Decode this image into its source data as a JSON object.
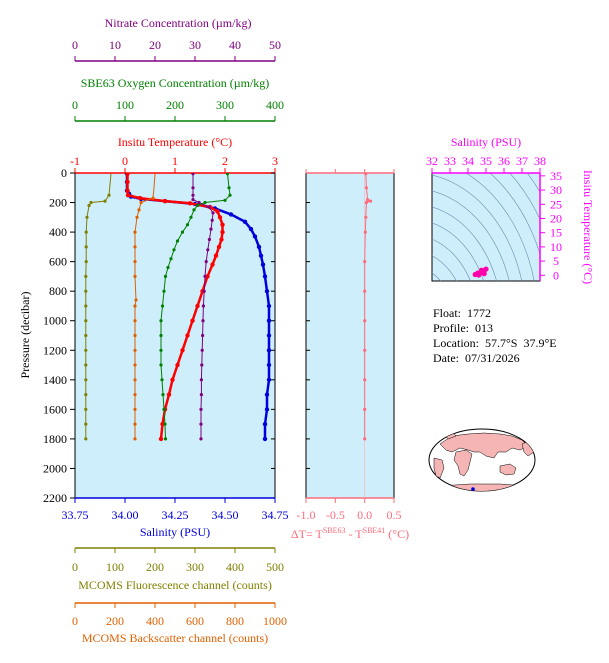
{
  "colors": {
    "plot_bg": "#cdeefa",
    "temperature": "#ff0000",
    "salinity": "#0000dd",
    "nitrate": "#800080",
    "oxygen": "#008000",
    "fluorescence": "#808000",
    "backscatter": "#e06000",
    "delta_t": "#ff6b7a",
    "ts_axis": "#ff00ff",
    "contours": "#6a8cb0"
  },
  "axes": {
    "nitrate": {
      "label": "Nitrate Concentration (µm/kg)",
      "ticks": [
        "0",
        "10",
        "20",
        "30",
        "40",
        "50"
      ],
      "range": [
        0,
        50
      ]
    },
    "oxygen": {
      "label": "SBE63 Oxygen Concentration (µm/kg)",
      "ticks": [
        "0",
        "100",
        "200",
        "300",
        "400"
      ],
      "range": [
        0,
        400
      ]
    },
    "temperature": {
      "label": "Insitu Temperature (°C)",
      "ticks": [
        "-1",
        "0",
        "1",
        "2",
        "3"
      ],
      "range": [
        -1,
        3
      ]
    },
    "pressure": {
      "label": "Pressure (decibar)",
      "ticks": [
        "0",
        "200",
        "400",
        "600",
        "800",
        "1000",
        "1200",
        "1400",
        "1600",
        "1800",
        "2000",
        "2200"
      ],
      "range": [
        0,
        2200
      ]
    },
    "salinity": {
      "label": "Salinity (PSU)",
      "ticks": [
        "33.75",
        "34.00",
        "34.25",
        "34.50",
        "34.75"
      ],
      "range": [
        33.75,
        34.75
      ]
    },
    "delta_t": {
      "label_prefix": "ΔT= T",
      "sup1": "SBE63",
      "label_mid": " - T",
      "sup2": "SBE41",
      "label_suffix": " (°C)",
      "ticks": [
        "-1.0",
        "-0.5",
        "0.0",
        "0.5"
      ],
      "range": [
        -1.0,
        0.5
      ]
    },
    "fluorescence": {
      "label": "MCOMS Fluorescence channel (counts)",
      "ticks": [
        "0",
        "100",
        "200",
        "300",
        "400",
        "500"
      ],
      "range": [
        0,
        500
      ]
    },
    "backscatter": {
      "label": "MCOMS Backscatter channel (counts)",
      "ticks": [
        "0",
        "200",
        "400",
        "600",
        "800",
        "1000"
      ],
      "range": [
        0,
        1000
      ]
    },
    "ts_salinity": {
      "label": "Salinity (PSU)",
      "ticks": [
        "32",
        "33",
        "34",
        "35",
        "36",
        "37",
        "38"
      ],
      "range": [
        32,
        38
      ]
    },
    "ts_temperature": {
      "label": "Insitu Temperature (°C)",
      "ticks": [
        "0",
        "5",
        "10",
        "15",
        "20",
        "25",
        "30",
        "35"
      ],
      "range": [
        -2,
        36
      ]
    }
  },
  "info": {
    "float": "Float:  1772",
    "profile": "Profile:  013",
    "location": "Location:  57.7°S  37.9°E",
    "date": "Date:  07/31/2026"
  },
  "chart_data": [
    {
      "type": "line",
      "name": "profile",
      "series": [
        {
          "name": "Salinity",
          "axis": "salinity",
          "points": [
            [
              34.01,
              5
            ],
            [
              34.01,
              60
            ],
            [
              34.01,
              120
            ],
            [
              34.02,
              140
            ],
            [
              34.03,
              160
            ],
            [
              34.08,
              175
            ],
            [
              34.2,
              190
            ],
            [
              34.35,
              210
            ],
            [
              34.45,
              240
            ],
            [
              34.53,
              280
            ],
            [
              34.6,
              330
            ],
            [
              34.63,
              380
            ],
            [
              34.65,
              430
            ],
            [
              34.67,
              500
            ],
            [
              34.68,
              560
            ],
            [
              34.69,
              620
            ],
            [
              34.7,
              700
            ],
            [
              34.71,
              800
            ],
            [
              34.72,
              900
            ],
            [
              34.72,
              1000
            ],
            [
              34.72,
              1100
            ],
            [
              34.72,
              1200
            ],
            [
              34.72,
              1300
            ],
            [
              34.72,
              1400
            ],
            [
              34.71,
              1500
            ],
            [
              34.71,
              1600
            ],
            [
              34.7,
              1700
            ],
            [
              34.7,
              1800
            ]
          ]
        },
        {
          "name": "Temperature",
          "axis": "temperature",
          "points": [
            [
              0.05,
              5
            ],
            [
              0.05,
              60
            ],
            [
              0.05,
              120
            ],
            [
              0.06,
              150
            ],
            [
              0.3,
              170
            ],
            [
              0.8,
              190
            ],
            [
              1.3,
              205
            ],
            [
              1.7,
              230
            ],
            [
              1.85,
              260
            ],
            [
              1.9,
              300
            ],
            [
              1.95,
              350
            ],
            [
              1.95,
              400
            ],
            [
              1.93,
              450
            ],
            [
              1.88,
              500
            ],
            [
              1.82,
              560
            ],
            [
              1.75,
              620
            ],
            [
              1.65,
              700
            ],
            [
              1.55,
              800
            ],
            [
              1.45,
              900
            ],
            [
              1.35,
              1000
            ],
            [
              1.25,
              1100
            ],
            [
              1.15,
              1200
            ],
            [
              1.05,
              1300
            ],
            [
              0.95,
              1400
            ],
            [
              0.88,
              1500
            ],
            [
              0.8,
              1600
            ],
            [
              0.75,
              1700
            ],
            [
              0.72,
              1800
            ]
          ]
        },
        {
          "name": "Nitrate",
          "axis": "nitrate",
          "points": [
            [
              29.5,
              5
            ],
            [
              29.5,
              100
            ],
            [
              29.5,
              150
            ],
            [
              29.5,
              180
            ],
            [
              31,
              200
            ],
            [
              33.5,
              230
            ],
            [
              34.5,
              270
            ],
            [
              34.3,
              320
            ],
            [
              34,
              380
            ],
            [
              33.6,
              450
            ],
            [
              33.2,
              520
            ],
            [
              32.8,
              600
            ],
            [
              32.5,
              700
            ],
            [
              32.3,
              800
            ],
            [
              32.1,
              900
            ],
            [
              32,
              1000
            ],
            [
              31.9,
              1100
            ],
            [
              31.8,
              1200
            ],
            [
              31.7,
              1300
            ],
            [
              31.6,
              1400
            ],
            [
              31.6,
              1500
            ],
            [
              31.5,
              1600
            ],
            [
              31.5,
              1700
            ],
            [
              31.5,
              1800
            ]
          ]
        },
        {
          "name": "Oxygen",
          "axis": "oxygen",
          "points": [
            [
              305,
              5
            ],
            [
              308,
              100
            ],
            [
              310,
              150
            ],
            [
              300,
              185
            ],
            [
              260,
              200
            ],
            [
              245,
              220
            ],
            [
              238,
              250
            ],
            [
              232,
              300
            ],
            [
              225,
              350
            ],
            [
              215,
              400
            ],
            [
              205,
              460
            ],
            [
              198,
              520
            ],
            [
              192,
              580
            ],
            [
              186,
              640
            ],
            [
              181,
              700
            ],
            [
              178,
              800
            ],
            [
              175,
              900
            ],
            [
              172,
              1000
            ],
            [
              172,
              1100
            ],
            [
              172,
              1200
            ],
            [
              172,
              1300
            ],
            [
              174,
              1400
            ],
            [
              176,
              1500
            ],
            [
              178,
              1600
            ],
            [
              180,
              1700
            ],
            [
              181,
              1800
            ]
          ]
        },
        {
          "name": "Fluorescence",
          "axis": "fluorescence",
          "points": [
            [
              90,
              5
            ],
            [
              85,
              150
            ],
            [
              75,
              190
            ],
            [
              40,
              200
            ],
            [
              35,
              220
            ],
            [
              30,
              300
            ],
            [
              28,
              400
            ],
            [
              28,
              500
            ],
            [
              28,
              600
            ],
            [
              27,
              700
            ],
            [
              27,
              800
            ],
            [
              27,
              900
            ],
            [
              27,
              1000
            ],
            [
              27,
              1100
            ],
            [
              27,
              1200
            ],
            [
              27,
              1300
            ],
            [
              27,
              1400
            ],
            [
              27,
              1500
            ],
            [
              27,
              1600
            ],
            [
              27,
              1700
            ],
            [
              27,
              1800
            ]
          ]
        },
        {
          "name": "Backscatter",
          "axis": "backscatter",
          "points": [
            [
              400,
              5
            ],
            [
              395,
              100
            ],
            [
              390,
              170
            ],
            [
              330,
              200
            ],
            [
              320,
              250
            ],
            [
              310,
              300
            ],
            [
              300,
              400
            ],
            [
              300,
              500
            ],
            [
              300,
              600
            ],
            [
              300,
              700
            ],
            [
              305,
              860
            ],
            [
              300,
              900
            ],
            [
              300,
              1000
            ],
            [
              300,
              1100
            ],
            [
              300,
              1200
            ],
            [
              300,
              1300
            ],
            [
              300,
              1400
            ],
            [
              300,
              1500
            ],
            [
              300,
              1600
            ],
            [
              300,
              1700
            ],
            [
              300,
              1800
            ]
          ]
        }
      ]
    },
    {
      "type": "line",
      "name": "delta_t",
      "series": [
        {
          "name": "Delta T",
          "axis": "delta_t",
          "points": [
            [
              0.02,
              5
            ],
            [
              0.03,
              100
            ],
            [
              0.05,
              180
            ],
            [
              0.1,
              190
            ],
            [
              0.03,
              200
            ],
            [
              0.02,
              300
            ],
            [
              0.01,
              400
            ],
            [
              0.0,
              600
            ],
            [
              0.0,
              800
            ],
            [
              0.0,
              1000
            ],
            [
              0.0,
              1200
            ],
            [
              0.0,
              1400
            ],
            [
              0.0,
              1600
            ],
            [
              0.0,
              1800
            ]
          ]
        }
      ]
    },
    {
      "type": "scatter",
      "name": "ts_diagram",
      "series": [
        {
          "name": "TS",
          "points": [
            [
              34.4,
              0.3
            ],
            [
              34.55,
              0.8
            ],
            [
              34.7,
              1.0
            ],
            [
              34.85,
              1.6
            ],
            [
              35.0,
              2.2
            ],
            [
              34.9,
              0.6
            ],
            [
              34.6,
              0.1
            ],
            [
              34.75,
              1.8
            ]
          ]
        }
      ]
    }
  ]
}
